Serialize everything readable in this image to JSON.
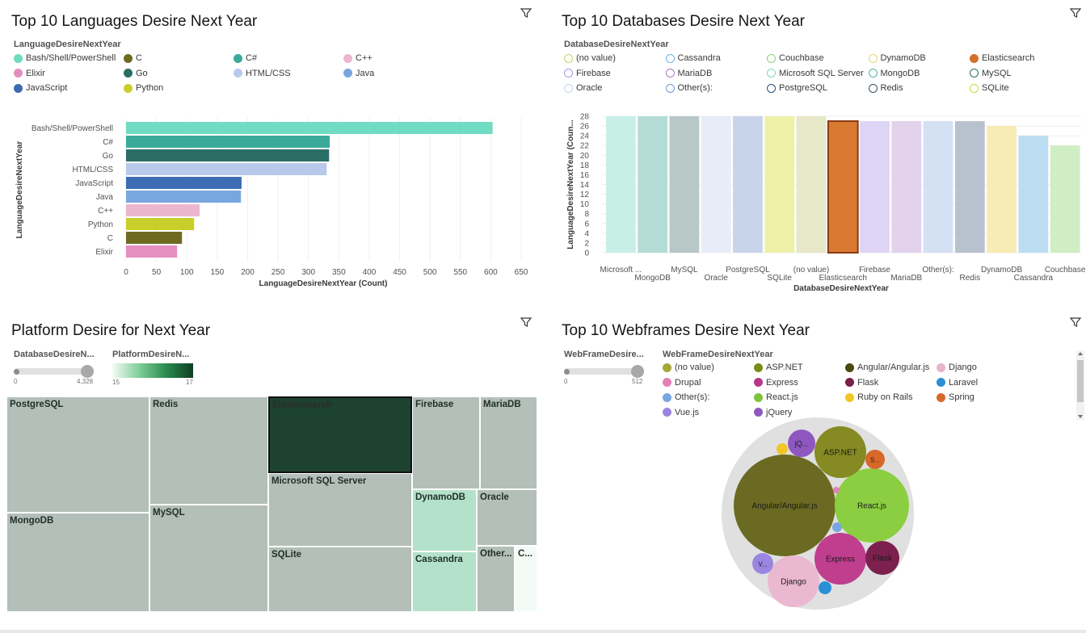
{
  "languages_panel": {
    "title": "Top 10 Languages Desire Next Year",
    "legend_title": "LanguageDesireNextYear",
    "legend": [
      {
        "label": "Bash/Shell/PowerShell",
        "color": "#6fdcc3"
      },
      {
        "label": "C",
        "color": "#6e6a22"
      },
      {
        "label": "C#",
        "color": "#3aaa9b"
      },
      {
        "label": "C++",
        "color": "#ecb6d0"
      },
      {
        "label": "Elixir",
        "color": "#e48fc0"
      },
      {
        "label": "Go",
        "color": "#2a6e66"
      },
      {
        "label": "HTML/CSS",
        "color": "#b8c9ea"
      },
      {
        "label": "Java",
        "color": "#7aa6e0"
      },
      {
        "label": "JavaScript",
        "color": "#3d6cb4"
      },
      {
        "label": "Python",
        "color": "#c9cf2a"
      }
    ],
    "chart_data": {
      "type": "bar",
      "orientation": "horizontal",
      "categories": [
        "Bash/Shell/PowerShell",
        "C#",
        "Go",
        "HTML/CSS",
        "JavaScript",
        "Java",
        "C++",
        "Python",
        "C",
        "Elixir"
      ],
      "values": [
        603,
        335,
        334,
        330,
        190,
        189,
        121,
        112,
        92,
        84
      ],
      "colors": [
        "#6fdcc3",
        "#3aaa9b",
        "#2a6e66",
        "#b8c9ea",
        "#3d6cb4",
        "#7aa6e0",
        "#ecb6d0",
        "#c9cf2a",
        "#6e6a22",
        "#e48fc0"
      ],
      "xlabel": "LanguageDesireNextYear (Count)",
      "ylabel": "LanguageDesireNextYear",
      "xlim": [
        0,
        650
      ],
      "xticks": [
        "0",
        "50",
        "100",
        "150",
        "200",
        "250",
        "300",
        "350",
        "400",
        "450",
        "500",
        "550",
        "600",
        "650"
      ],
      "grid": true
    }
  },
  "databases_panel": {
    "title": "Top 10 Databases Desire Next Year",
    "legend_title": "DatabaseDesireNextYear",
    "legend": [
      {
        "label": "(no value)",
        "color": "#c5d36a"
      },
      {
        "label": "Cassandra",
        "color": "#6ab4e4"
      },
      {
        "label": "Couchbase",
        "color": "#8fd07a"
      },
      {
        "label": "DynamoDB",
        "color": "#ead46e"
      },
      {
        "label": "Elasticsearch",
        "color": "#d4722a",
        "filled": true
      },
      {
        "label": "Firebase",
        "color": "#a893e6"
      },
      {
        "label": "MariaDB",
        "color": "#b07ac6"
      },
      {
        "label": "Microsoft SQL Server",
        "color": "#7ed7c6"
      },
      {
        "label": "MongoDB",
        "color": "#4bb7a8"
      },
      {
        "label": "MySQL",
        "color": "#2a6e66"
      },
      {
        "label": "Oracle",
        "color": "#c3d4ee"
      },
      {
        "label": "Other(s):",
        "color": "#6f9ad8"
      },
      {
        "label": "PostgreSQL",
        "color": "#2d4e80"
      },
      {
        "label": "Redis",
        "color": "#3c4f62"
      },
      {
        "label": "SQLite",
        "color": "#d2d634"
      }
    ],
    "chart_data": {
      "type": "bar",
      "categories": [
        "Microsoft SQL Server",
        "MongoDB",
        "MySQL",
        "Oracle",
        "PostgreSQL",
        "SQLite",
        "(no value)",
        "Elasticsearch",
        "Firebase",
        "MariaDB",
        "Other(s):",
        "Redis",
        "DynamoDB",
        "Cassandra",
        "Couchbase"
      ],
      "tick_labels": [
        "Microsoft ...",
        "MongoDB",
        "MySQL",
        "Oracle",
        "PostgreSQL",
        "SQLite",
        "(no value)",
        "Elasticsearch",
        "Firebase",
        "MariaDB",
        "Other(s):",
        "Redis",
        "DynamoDB",
        "Cassandra",
        "Couchbase"
      ],
      "values": [
        28,
        28,
        28,
        28,
        28,
        28,
        28,
        27,
        27,
        27,
        27,
        27,
        26,
        24,
        22
      ],
      "colors": [
        "#c8efe6",
        "#b4dcd6",
        "#b8c8c6",
        "#e8ecf8",
        "#c8d4ea",
        "#eef0a8",
        "#e6e8c8",
        "#d87a32",
        "#ddd4f6",
        "#e2d2ec",
        "#d4e0f4",
        "#b8c2ce",
        "#f6ecb4",
        "#bcddf1",
        "#cfeec4"
      ],
      "highlighted": "Elasticsearch",
      "xlabel": "DatabaseDesireNextYear",
      "ylabel": "LanguageDesireNextYear (Coun...",
      "ylim": [
        0,
        28
      ],
      "yticks": [
        "0",
        "2",
        "4",
        "6",
        "8",
        "10",
        "12",
        "14",
        "16",
        "18",
        "20",
        "22",
        "24",
        "26",
        "28"
      ],
      "grid": true
    }
  },
  "platform_panel": {
    "title": "Platform Desire for Next Year",
    "slider1": {
      "label": "DatabaseDesireN...",
      "min": "0",
      "max": "4,328"
    },
    "slider2": {
      "label": "PlatformDesireN...",
      "min": "15",
      "max": "17"
    },
    "treemap": [
      {
        "label": "PostgreSQL",
        "color": "#b3bfb8"
      },
      {
        "label": "MongoDB",
        "color": "#b3bfb8"
      },
      {
        "label": "Redis",
        "color": "#b3bfb8"
      },
      {
        "label": "MySQL",
        "color": "#b3bfb8"
      },
      {
        "label": "Elasticsearch",
        "color": "#1d4330",
        "selected": true
      },
      {
        "label": "Microsoft SQL Server",
        "color": "#b3bfb8"
      },
      {
        "label": "SQLite",
        "color": "#b3bfb8"
      },
      {
        "label": "Firebase",
        "color": "#b3bfb8"
      },
      {
        "label": "MariaDB",
        "color": "#b3bfb8"
      },
      {
        "label": "DynamoDB",
        "color": "#b4e1c9"
      },
      {
        "label": "Oracle",
        "color": "#b3bfb8"
      },
      {
        "label": "Cassandra",
        "color": "#b4e1c9"
      },
      {
        "label": "Other...",
        "color": "#b3bfb8"
      },
      {
        "label": "C...",
        "color": "#f2fbf6"
      }
    ]
  },
  "webframes_panel": {
    "title": "Top 10 Webframes Desire Next Year",
    "slider": {
      "label": "WebFrameDesire...",
      "min": "0",
      "max": "512"
    },
    "legend_title": "WebFrameDesireNextYear",
    "legend": [
      {
        "label": "(no value)",
        "color": "#a3a836"
      },
      {
        "label": "ASP.NET",
        "color": "#7c8a1a"
      },
      {
        "label": "Angular/Angular.js",
        "color": "#4a4a10"
      },
      {
        "label": "Django",
        "color": "#e6b4cc"
      },
      {
        "label": "Drupal",
        "color": "#e480b8"
      },
      {
        "label": "Express",
        "color": "#b8378a"
      },
      {
        "label": "Flask",
        "color": "#7a1e4c"
      },
      {
        "label": "Laravel",
        "color": "#2a8fd4"
      },
      {
        "label": "Other(s):",
        "color": "#78a6e0"
      },
      {
        "label": "React.js",
        "color": "#7ec43a"
      },
      {
        "label": "Ruby on Rails",
        "color": "#f2c624"
      },
      {
        "label": "Spring",
        "color": "#d8682a"
      },
      {
        "label": "Vue.js",
        "color": "#9a86e0"
      },
      {
        "label": "jQuery",
        "color": "#8e58c0"
      }
    ],
    "bubbles": [
      {
        "label": "Angular/Angular.js",
        "color": "#6b6a22",
        "text_color": "#1a1a1a"
      },
      {
        "label": "React.js",
        "color": "#8cce42",
        "text_color": "#1a1a1a"
      },
      {
        "label": "ASP.NET",
        "color": "#858a22",
        "text_color": "#1a1a1a"
      },
      {
        "label": "Express",
        "color": "#bf3e8e",
        "text_color": "#1a1a1a"
      },
      {
        "label": "Django",
        "color": "#eab9d1",
        "text_color": "#1a1a1a"
      },
      {
        "label": "Flask",
        "color": "#7c2050",
        "text_color": "#1a1a1a"
      },
      {
        "label": "jQ...",
        "color": "#8e58c0",
        "text_color": "#1a1a1a"
      },
      {
        "label": "S...",
        "color": "#d8682a",
        "text_color": "#1a1a1a"
      },
      {
        "label": "V...",
        "color": "#9a86e0",
        "text_color": "#1a1a1a"
      },
      {
        "label": "",
        "color": "#f2c624",
        "text_color": "#1a1a1a"
      },
      {
        "label": "",
        "color": "#2a8fd4",
        "text_color": "#1a1a1a"
      },
      {
        "label": "",
        "color": "#78a6e0",
        "text_color": "#1a1a1a"
      },
      {
        "label": "",
        "color": "#e480b8",
        "text_color": "#1a1a1a"
      }
    ]
  }
}
